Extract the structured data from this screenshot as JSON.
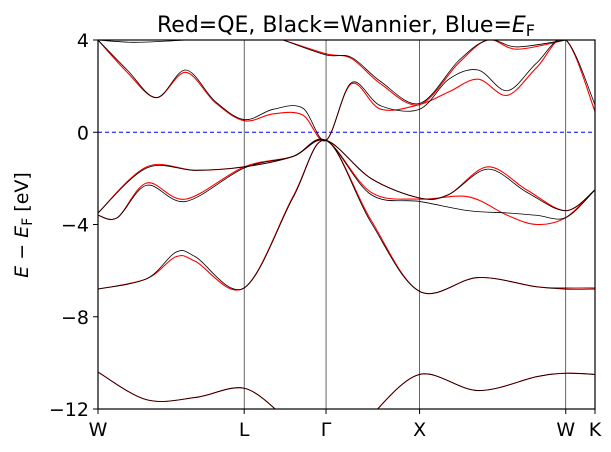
{
  "chart_data": {
    "type": "line",
    "title": "Red=QE, Black=Wannier, Blue=EF",
    "title_parts": {
      "main": "Red=QE, Black=Wannier, Blue=",
      "symbol": "E",
      "subscript": "F"
    },
    "ylabel": "E − EF [eV]",
    "ylabel_parts": {
      "e1": "E",
      "minus": " − ",
      "e2": "E",
      "subscript": "F",
      "unit": " [eV]"
    },
    "x_ticks": [
      {
        "label": "W",
        "pos": 0.0
      },
      {
        "label": "L",
        "pos": 1.5
      },
      {
        "label": "Γ",
        "pos": 2.34
      },
      {
        "label": "X",
        "pos": 3.3
      },
      {
        "label": "W",
        "pos": 4.8
      },
      {
        "label": "K",
        "pos": 5.1
      }
    ],
    "xlim": [
      0.0,
      5.1
    ],
    "ylim": [
      -12,
      4
    ],
    "y_ticks": [
      {
        "label": "4",
        "value": 4
      },
      {
        "label": "0",
        "value": 0
      },
      {
        "label": "−4",
        "value": -4
      },
      {
        "label": "−8",
        "value": -8
      },
      {
        "label": "−12",
        "value": -12
      }
    ],
    "fermi_level": 0,
    "colors": {
      "qe": "#ff0000",
      "wannier": "#000000",
      "fermi": "#0000ff"
    },
    "series": [
      {
        "name": "QE",
        "color": "#ff0000",
        "bands": [
          [
            [
              0,
              -10.4
            ],
            [
              0.5,
              -11.6
            ],
            [
              1.0,
              -11.5
            ],
            [
              1.5,
              -11.1
            ],
            [
              1.9,
              -12.3
            ]
          ],
          [
            [
              2.8,
              -12.3
            ],
            [
              3.3,
              -10.5
            ],
            [
              3.9,
              -11.2
            ],
            [
              4.5,
              -10.6
            ],
            [
              4.8,
              -10.45
            ],
            [
              5.1,
              -10.5
            ]
          ],
          [
            [
              0,
              -6.8
            ],
            [
              0.5,
              -6.35
            ],
            [
              0.8,
              -5.4
            ],
            [
              1.0,
              -5.6
            ],
            [
              1.5,
              -6.75
            ],
            [
              2.0,
              -2.8
            ],
            [
              2.34,
              -0.35
            ],
            [
              2.8,
              -3.8
            ],
            [
              3.3,
              -6.9
            ],
            [
              3.9,
              -6.3
            ],
            [
              4.5,
              -6.7
            ],
            [
              4.8,
              -6.75
            ],
            [
              5.1,
              -6.75
            ]
          ],
          [
            [
              0,
              -3.6
            ],
            [
              0.2,
              -3.7
            ],
            [
              0.5,
              -2.2
            ],
            [
              0.9,
              -2.9
            ],
            [
              1.5,
              -1.5
            ],
            [
              2.0,
              -1.05
            ],
            [
              2.34,
              -0.35
            ],
            [
              2.8,
              -2.0
            ],
            [
              3.3,
              -2.85
            ],
            [
              3.6,
              -2.7
            ],
            [
              4.0,
              -1.5
            ],
            [
              4.4,
              -2.5
            ],
            [
              4.8,
              -3.4
            ],
            [
              5.1,
              -2.5
            ]
          ],
          [
            [
              0,
              -3.5
            ],
            [
              0.5,
              -1.5
            ],
            [
              1.0,
              -1.65
            ],
            [
              1.5,
              -1.5
            ],
            [
              2.0,
              -1.05
            ],
            [
              2.34,
              -0.35
            ],
            [
              2.8,
              -2.6
            ],
            [
              3.3,
              -2.9
            ],
            [
              3.8,
              -2.8
            ],
            [
              4.2,
              -3.6
            ],
            [
              4.5,
              -4.0
            ],
            [
              4.8,
              -3.7
            ],
            [
              5.1,
              -2.5
            ]
          ],
          [
            [
              0,
              4.0
            ],
            [
              0.3,
              2.6
            ],
            [
              0.6,
              1.5
            ],
            [
              0.9,
              2.6
            ],
            [
              1.2,
              1.3
            ],
            [
              1.5,
              0.5
            ],
            [
              1.8,
              0.8
            ],
            [
              2.1,
              0.75
            ],
            [
              2.34,
              -0.35
            ],
            [
              2.6,
              2.1
            ],
            [
              2.9,
              1.0
            ],
            [
              3.3,
              1.2
            ],
            [
              3.6,
              1.75
            ],
            [
              3.9,
              2.3
            ],
            [
              4.2,
              1.6
            ],
            [
              4.5,
              2.8
            ],
            [
              4.8,
              4.0
            ],
            [
              5.1,
              0.9
            ]
          ],
          [
            [
              0,
              4.0
            ],
            [
              0.35,
              4.0
            ],
            [
              0.7,
              4.0
            ],
            [
              0.9,
              4.0
            ]
          ],
          [
            [
              1.9,
              4.0
            ],
            [
              2.34,
              3.4
            ],
            [
              2.6,
              3.2
            ],
            [
              2.9,
              2.1
            ],
            [
              3.3,
              1.2
            ],
            [
              3.7,
              3.0
            ],
            [
              4.0,
              4.0
            ],
            [
              4.3,
              3.6
            ],
            [
              4.8,
              4.0
            ]
          ]
        ]
      },
      {
        "name": "Wannier",
        "color": "#000000",
        "bands": [
          [
            [
              0,
              -10.4
            ],
            [
              0.5,
              -11.6
            ],
            [
              1.0,
              -11.5
            ],
            [
              1.5,
              -11.1
            ],
            [
              1.9,
              -12.3
            ]
          ],
          [
            [
              2.8,
              -12.3
            ],
            [
              3.3,
              -10.5
            ],
            [
              3.9,
              -11.2
            ],
            [
              4.5,
              -10.6
            ],
            [
              4.8,
              -10.45
            ],
            [
              5.1,
              -10.5
            ]
          ],
          [
            [
              0,
              -6.8
            ],
            [
              0.5,
              -6.35
            ],
            [
              0.8,
              -5.2
            ],
            [
              1.0,
              -5.4
            ],
            [
              1.5,
              -6.75
            ],
            [
              2.0,
              -2.85
            ],
            [
              2.34,
              -0.35
            ],
            [
              2.8,
              -3.9
            ],
            [
              3.3,
              -6.9
            ],
            [
              3.9,
              -6.3
            ],
            [
              4.5,
              -6.7
            ],
            [
              4.8,
              -6.8
            ],
            [
              5.1,
              -6.8
            ]
          ],
          [
            [
              0,
              -3.6
            ],
            [
              0.2,
              -3.7
            ],
            [
              0.5,
              -2.3
            ],
            [
              0.9,
              -3.0
            ],
            [
              1.5,
              -1.55
            ],
            [
              2.0,
              -1.05
            ],
            [
              2.34,
              -0.35
            ],
            [
              2.8,
              -2.0
            ],
            [
              3.3,
              -2.85
            ],
            [
              3.6,
              -2.7
            ],
            [
              4.0,
              -1.6
            ],
            [
              4.4,
              -2.6
            ],
            [
              4.8,
              -3.4
            ],
            [
              5.1,
              -2.5
            ]
          ],
          [
            [
              0,
              -3.5
            ],
            [
              0.5,
              -1.55
            ],
            [
              1.0,
              -1.65
            ],
            [
              1.5,
              -1.5
            ],
            [
              2.0,
              -1.05
            ],
            [
              2.34,
              -0.35
            ],
            [
              2.8,
              -2.7
            ],
            [
              3.3,
              -3.0
            ],
            [
              3.8,
              -3.4
            ],
            [
              4.2,
              -3.5
            ],
            [
              4.5,
              -3.6
            ],
            [
              4.8,
              -3.7
            ],
            [
              5.1,
              -2.5
            ]
          ],
          [
            [
              0,
              4.0
            ],
            [
              0.3,
              2.7
            ],
            [
              0.6,
              1.5
            ],
            [
              0.9,
              2.7
            ],
            [
              1.2,
              1.35
            ],
            [
              1.5,
              0.55
            ],
            [
              1.8,
              1.0
            ],
            [
              2.1,
              1.05
            ],
            [
              2.34,
              -0.35
            ],
            [
              2.6,
              2.15
            ],
            [
              2.9,
              1.15
            ],
            [
              3.3,
              1.0
            ],
            [
              3.6,
              2.3
            ],
            [
              3.9,
              2.7
            ],
            [
              4.2,
              1.8
            ],
            [
              4.5,
              3.0
            ],
            [
              4.8,
              4.0
            ],
            [
              5.1,
              1.2
            ]
          ],
          [
            [
              0,
              4.0
            ],
            [
              0.35,
              3.9
            ],
            [
              0.7,
              3.95
            ],
            [
              0.9,
              4.0
            ]
          ],
          [
            [
              1.9,
              4.0
            ],
            [
              2.34,
              3.35
            ],
            [
              2.6,
              3.25
            ],
            [
              2.9,
              2.2
            ],
            [
              3.3,
              1.25
            ],
            [
              3.7,
              3.1
            ],
            [
              4.0,
              4.0
            ],
            [
              4.3,
              3.7
            ],
            [
              4.8,
              4.0
            ]
          ]
        ]
      }
    ]
  }
}
